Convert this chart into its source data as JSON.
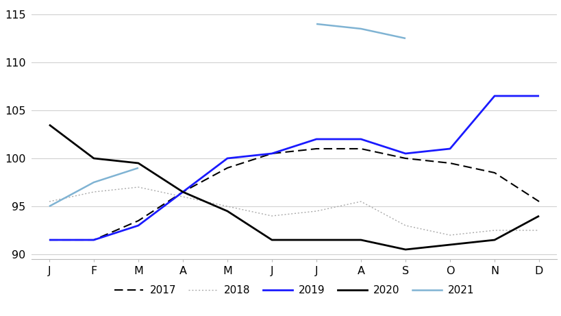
{
  "months": [
    "J",
    "F",
    "M",
    "A",
    "M",
    "J",
    "J",
    "A",
    "S",
    "O",
    "N",
    "D"
  ],
  "series": {
    "2017": [
      91.5,
      91.5,
      93.5,
      96.5,
      99.0,
      100.5,
      101.0,
      101.0,
      100.0,
      99.5,
      98.5,
      95.5
    ],
    "2018": [
      95.5,
      96.5,
      97.0,
      96.0,
      95.0,
      94.0,
      94.5,
      95.5,
      93.0,
      92.0,
      92.5,
      92.5
    ],
    "2019": [
      91.5,
      91.5,
      93.0,
      96.5,
      100.0,
      100.5,
      102.0,
      102.0,
      100.5,
      101.0,
      106.5,
      106.5
    ],
    "2020": [
      103.5,
      100.0,
      99.5,
      96.5,
      94.5,
      91.5,
      91.5,
      91.5,
      90.5,
      91.0,
      91.5,
      94.0
    ],
    "2021": [
      95.0,
      97.5,
      99.0,
      null,
      null,
      null,
      114.0,
      113.5,
      112.5,
      null,
      null,
      null
    ]
  },
  "colors": {
    "2017": "#000000",
    "2018": "#aaaaaa",
    "2019": "#1a1aff",
    "2020": "#000000",
    "2021": "#7fb3d3"
  },
  "linestyles": {
    "2017": "dashed",
    "2018": "dotted",
    "2019": "solid",
    "2020": "solid",
    "2021": "solid"
  },
  "linewidths": {
    "2017": 1.5,
    "2018": 1.0,
    "2019": 2.0,
    "2020": 2.0,
    "2021": 1.8
  },
  "ylim": [
    89.5,
    116
  ],
  "yticks": [
    90,
    95,
    100,
    105,
    110,
    115
  ],
  "background_color": "#ffffff",
  "grid_color": "#d0d0d0",
  "legend": {
    "2017": {
      "label": "2017",
      "color": "#000000",
      "linestyle": "dashed",
      "linewidth": 1.5
    },
    "2018": {
      "label": "2018",
      "color": "#aaaaaa",
      "linestyle": "dotted",
      "linewidth": 1.0
    },
    "2019": {
      "label": "2019",
      "color": "#1a1aff",
      "linestyle": "solid",
      "linewidth": 2.0
    },
    "2020": {
      "label": "2020",
      "color": "#000000",
      "linestyle": "solid",
      "linewidth": 2.0
    },
    "2021": {
      "label": "2021",
      "color": "#7fb3d3",
      "linestyle": "solid",
      "linewidth": 1.8
    }
  }
}
